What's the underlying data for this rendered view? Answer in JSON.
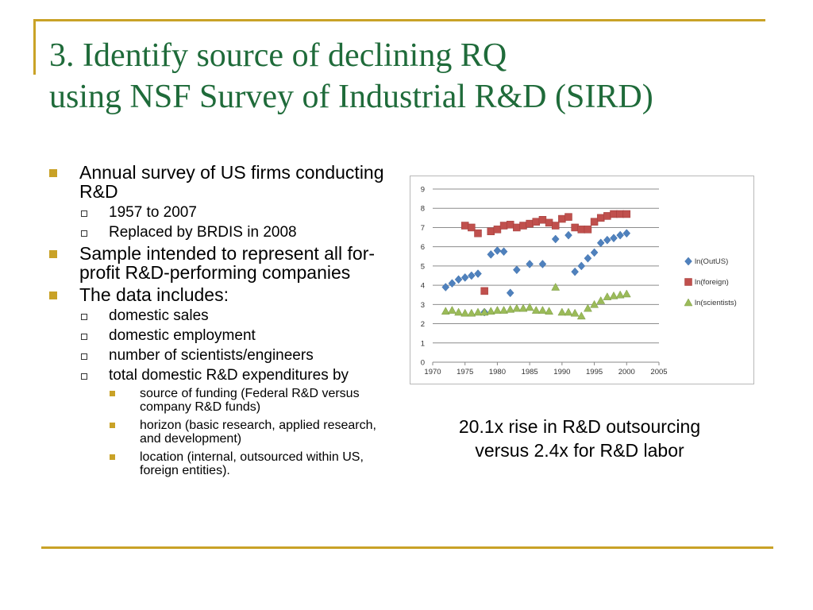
{
  "title": {
    "line1": "3. Identify source of declining RQ",
    "line2": "using NSF Survey of Industrial R&D (SIRD)"
  },
  "bullets": {
    "b1": {
      "text": "Annual survey of US firms conducting R&D",
      "subs": [
        "1957 to 2007",
        "Replaced by BRDIS in 2008"
      ]
    },
    "b2": {
      "text": "Sample intended to represent all for-profit R&D-performing companies"
    },
    "b3": {
      "text": "The data includes:",
      "subs": [
        "domestic sales",
        "domestic employment",
        "number of scientists/engineers",
        "total domestic R&D expenditures by"
      ],
      "subsubs": [
        "source of funding (Federal R&D versus company R&D funds)",
        "horizon (basic research, applied research, and development)",
        "location (internal, outsourced within US, foreign entities)."
      ]
    }
  },
  "caption": {
    "line1": "20.1x rise in R&D outsourcing",
    "line2": "versus 2.4x for R&D labor"
  },
  "chart_data": {
    "type": "scatter",
    "xlim": [
      1970,
      2005
    ],
    "ylim": [
      0,
      9
    ],
    "x_ticks": [
      "1970",
      "1975",
      "1980",
      "1985",
      "1990",
      "1995",
      "2000",
      "2005"
    ],
    "y_ticks": [
      "0",
      "1",
      "2",
      "3",
      "4",
      "5",
      "6",
      "7",
      "8",
      "9"
    ],
    "grid": "horizontal",
    "legend_position": "right",
    "series": [
      {
        "name": "ln(OutUS)",
        "color": "#4f81bd",
        "marker": "diamond",
        "points": [
          [
            1972,
            3.9
          ],
          [
            1973,
            4.1
          ],
          [
            1974,
            4.3
          ],
          [
            1975,
            4.4
          ],
          [
            1976,
            4.5
          ],
          [
            1977,
            4.6
          ],
          [
            1978,
            2.6
          ],
          [
            1979,
            5.6
          ],
          [
            1980,
            5.8
          ],
          [
            1981,
            5.75
          ],
          [
            1982,
            3.6
          ],
          [
            1983,
            4.8
          ],
          [
            1985,
            5.1
          ],
          [
            1987,
            5.1
          ],
          [
            1989,
            6.4
          ],
          [
            1991,
            6.6
          ],
          [
            1992,
            4.7
          ],
          [
            1993,
            5.0
          ],
          [
            1994,
            5.4
          ],
          [
            1995,
            5.7
          ],
          [
            1996,
            6.2
          ],
          [
            1997,
            6.35
          ],
          [
            1998,
            6.45
          ],
          [
            1999,
            6.6
          ],
          [
            2000,
            6.7
          ]
        ]
      },
      {
        "name": "ln(foreign)",
        "color": "#c0504d",
        "marker": "square",
        "points": [
          [
            1975,
            7.1
          ],
          [
            1976,
            7.0
          ],
          [
            1977,
            6.7
          ],
          [
            1978,
            3.7
          ],
          [
            1979,
            6.8
          ],
          [
            1980,
            6.9
          ],
          [
            1981,
            7.1
          ],
          [
            1982,
            7.15
          ],
          [
            1983,
            7.0
          ],
          [
            1984,
            7.1
          ],
          [
            1985,
            7.2
          ],
          [
            1986,
            7.3
          ],
          [
            1987,
            7.4
          ],
          [
            1988,
            7.25
          ],
          [
            1989,
            7.1
          ],
          [
            1990,
            7.45
          ],
          [
            1991,
            7.55
          ],
          [
            1992,
            7.0
          ],
          [
            1993,
            6.9
          ],
          [
            1994,
            6.9
          ],
          [
            1995,
            7.3
          ],
          [
            1996,
            7.5
          ],
          [
            1997,
            7.6
          ],
          [
            1998,
            7.7
          ],
          [
            1999,
            7.7
          ],
          [
            2000,
            7.7
          ]
        ]
      },
      {
        "name": "ln(scientists)",
        "color": "#9bbb59",
        "marker": "triangle",
        "points": [
          [
            1972,
            2.65
          ],
          [
            1973,
            2.7
          ],
          [
            1974,
            2.6
          ],
          [
            1975,
            2.55
          ],
          [
            1976,
            2.55
          ],
          [
            1977,
            2.6
          ],
          [
            1978,
            2.6
          ],
          [
            1979,
            2.65
          ],
          [
            1980,
            2.7
          ],
          [
            1981,
            2.7
          ],
          [
            1982,
            2.75
          ],
          [
            1983,
            2.8
          ],
          [
            1984,
            2.8
          ],
          [
            1985,
            2.85
          ],
          [
            1986,
            2.7
          ],
          [
            1987,
            2.7
          ],
          [
            1988,
            2.65
          ],
          [
            1989,
            3.9
          ],
          [
            1990,
            2.6
          ],
          [
            1991,
            2.6
          ],
          [
            1992,
            2.55
          ],
          [
            1993,
            2.4
          ],
          [
            1994,
            2.8
          ],
          [
            1995,
            3.0
          ],
          [
            1996,
            3.2
          ],
          [
            1997,
            3.4
          ],
          [
            1998,
            3.45
          ],
          [
            1999,
            3.5
          ],
          [
            2000,
            3.55
          ]
        ]
      }
    ]
  }
}
